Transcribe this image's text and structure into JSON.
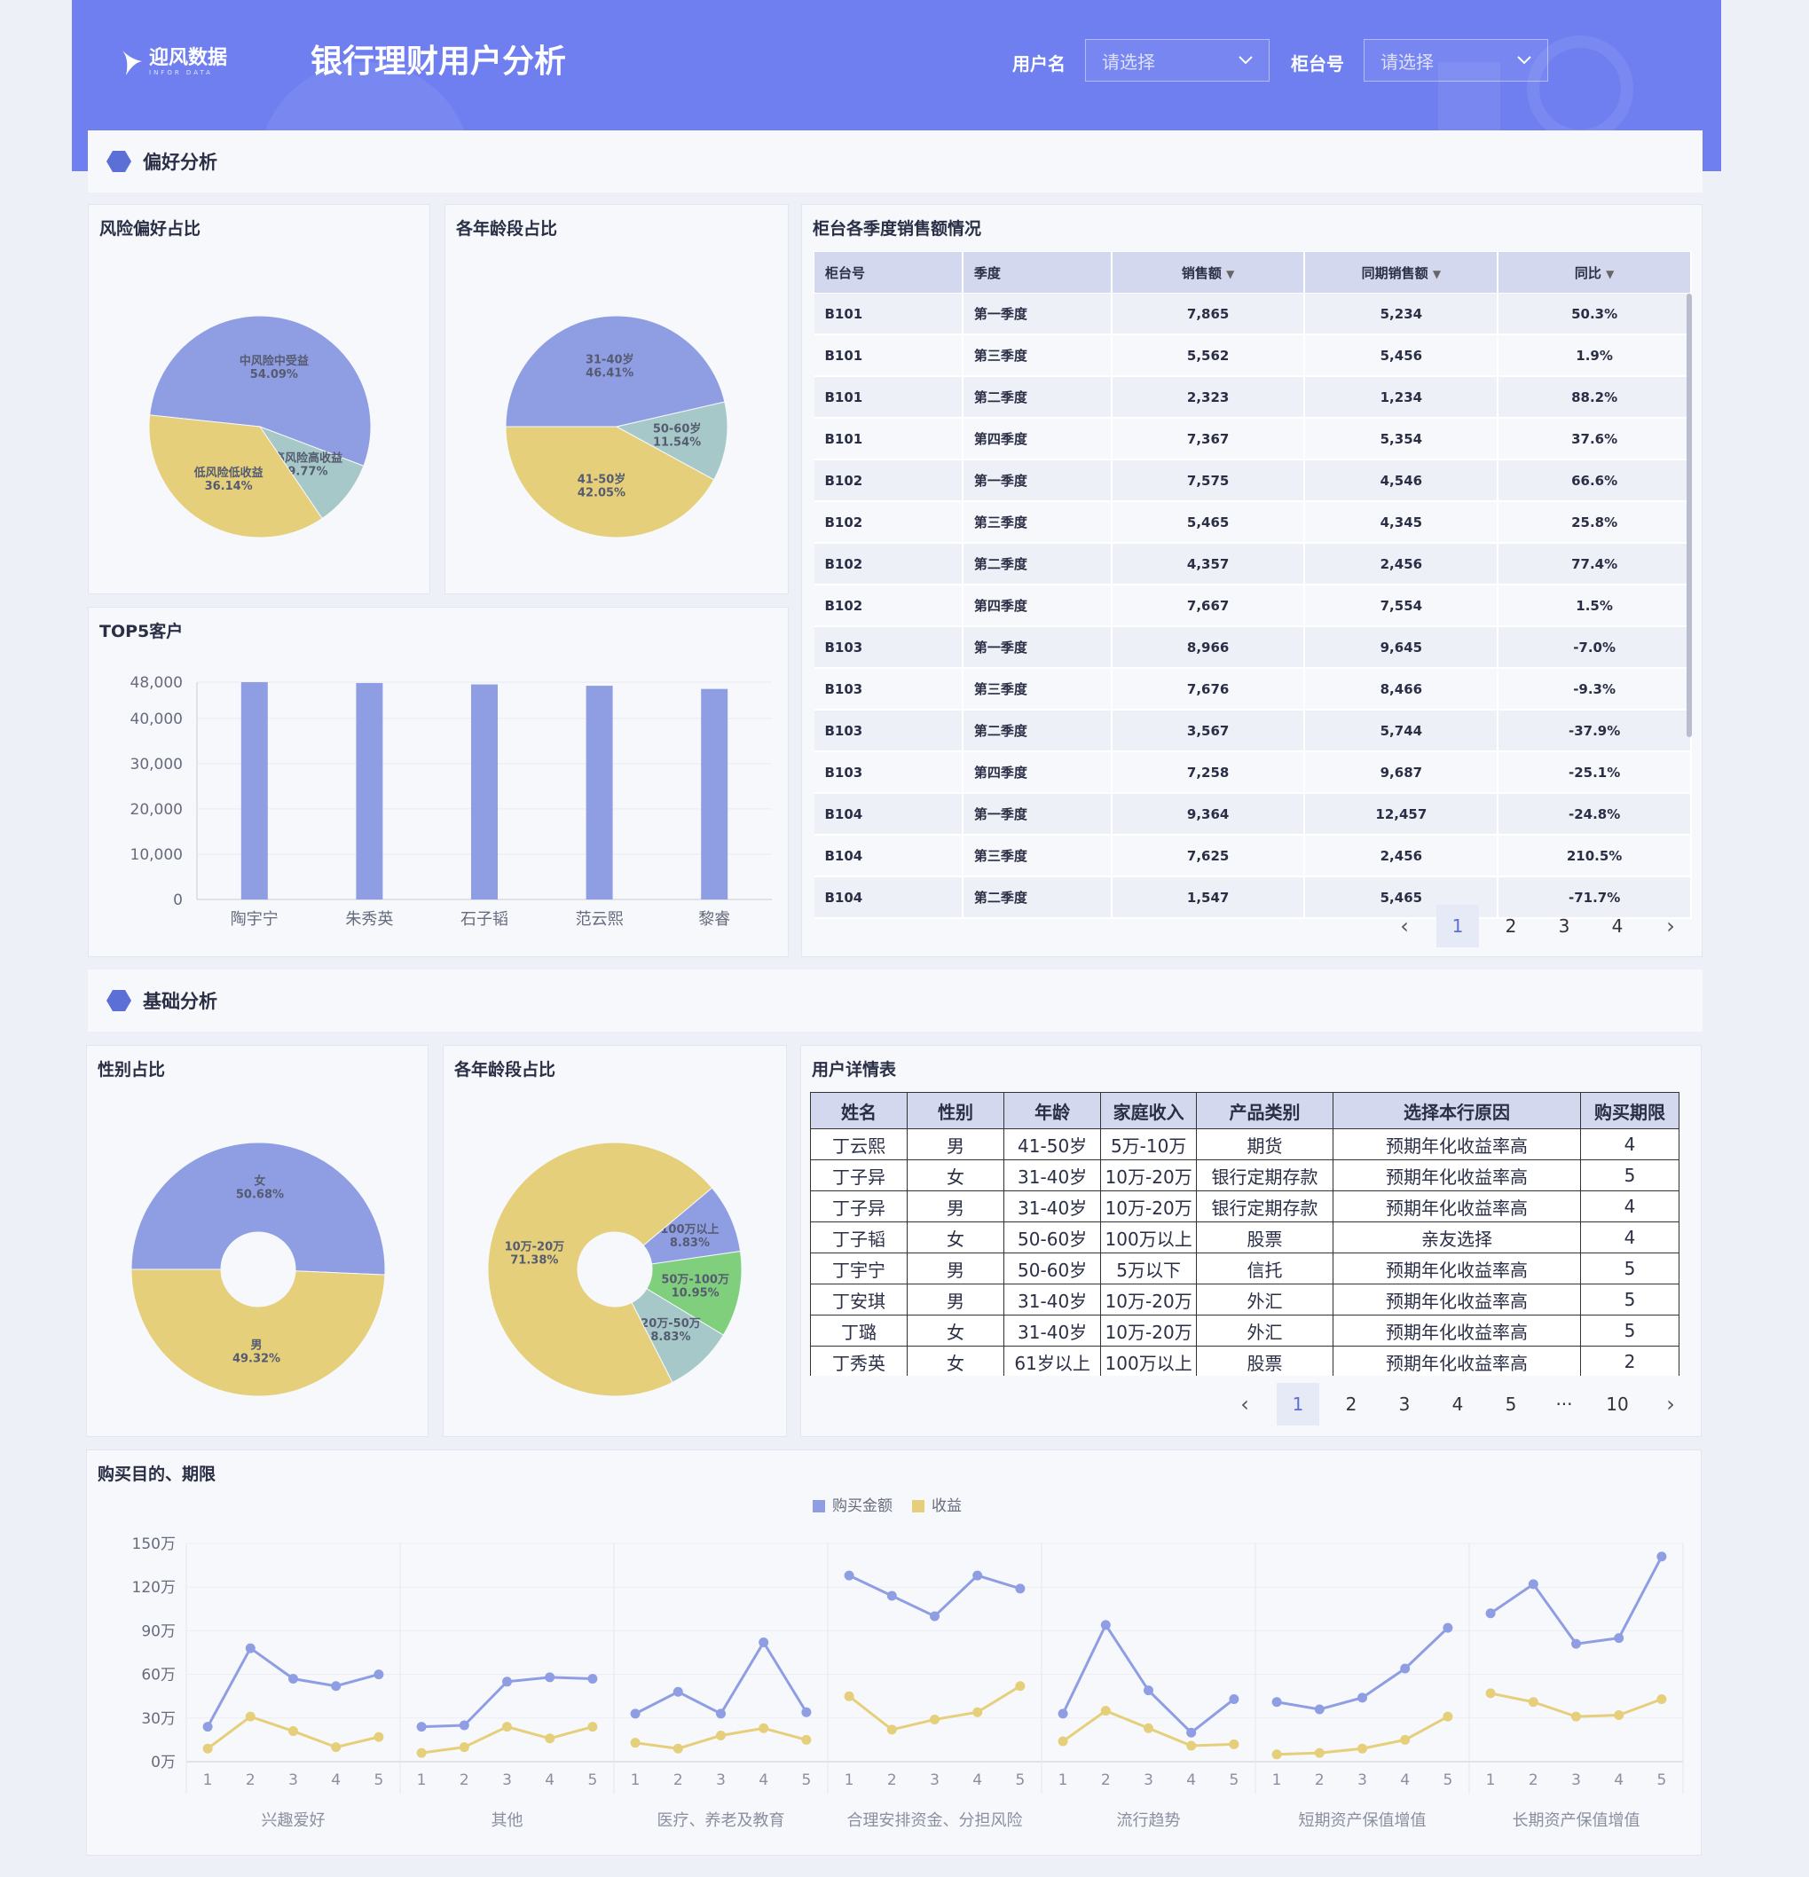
{
  "header": {
    "logo_text": "迎风数据",
    "logo_sub": "INFOR DATA",
    "title": "银行理财用户分析",
    "filters": [
      {
        "label": "用户名",
        "placeholder": "请选择"
      },
      {
        "label": "柜台号",
        "placeholder": "请选择"
      }
    ]
  },
  "sections": {
    "preference": "偏好分析",
    "basic": "基础分析"
  },
  "colors": {
    "primary": "#8f9ee3",
    "yellow": "#e5cf7a",
    "teal": "#a7c8c9",
    "green": "#80cf7c",
    "header": "#6f7ff0"
  },
  "chart_data": [
    {
      "id": "risk-pie",
      "type": "pie",
      "title": "风险偏好占比",
      "slices": [
        {
          "name": "中风险中受益",
          "value": 54.09
        },
        {
          "name": "高风险高收益",
          "value": 9.77
        },
        {
          "name": "低风险低收益",
          "value": 36.14
        }
      ]
    },
    {
      "id": "age-pie",
      "type": "pie",
      "title": "各年龄段占比",
      "slices": [
        {
          "name": "31-40岁",
          "value": 46.41
        },
        {
          "name": "50-60岁",
          "value": 11.54
        },
        {
          "name": "41-50岁",
          "value": 42.05
        }
      ]
    },
    {
      "id": "top5",
      "type": "bar",
      "title": "TOP5客户",
      "categories": [
        "陶宇宁",
        "朱秀英",
        "石子韬",
        "范云熙",
        "黎睿"
      ],
      "values": [
        48000,
        47800,
        47500,
        47200,
        46500
      ],
      "yticks": [
        0,
        10000,
        20000,
        30000,
        40000,
        48000
      ],
      "ytick_labels": [
        "0",
        "10,000",
        "20,000",
        "30,000",
        "40,000",
        "48,000"
      ],
      "ylim": [
        0,
        48000
      ]
    },
    {
      "id": "gender-pie",
      "type": "pie",
      "title": "性别占比",
      "slices": [
        {
          "name": "女",
          "value": 50.68
        },
        {
          "name": "男",
          "value": 49.32
        }
      ]
    },
    {
      "id": "income-pie",
      "type": "pie",
      "title": "各年龄段占比",
      "slices": [
        {
          "name": "100万以上",
          "value": 8.83
        },
        {
          "name": "50万-100万",
          "value": 10.95
        },
        {
          "name": "20万-50万",
          "value": 8.83
        },
        {
          "name": "10万-20万",
          "value": 71.38
        }
      ]
    },
    {
      "id": "purpose",
      "type": "line",
      "title": "购买目的、期限",
      "legend": [
        "购买金额",
        "收益"
      ],
      "yticks": [
        0,
        30,
        60,
        90,
        120,
        150
      ],
      "ytick_labels": [
        "0万",
        "30万",
        "60万",
        "90万",
        "120万",
        "150万"
      ],
      "ylim": [
        0,
        150
      ],
      "x": [
        1,
        2,
        3,
        4,
        5
      ],
      "groups": [
        {
          "name": "兴趣爱好",
          "amount": [
            24,
            78,
            57,
            52,
            60
          ],
          "profit": [
            9,
            31,
            21,
            10,
            17
          ]
        },
        {
          "name": "其他",
          "amount": [
            24,
            25,
            55,
            58,
            57
          ],
          "profit": [
            6,
            10,
            24,
            16,
            24
          ]
        },
        {
          "name": "医疗、养老及教育",
          "amount": [
            33,
            48,
            33,
            82,
            34
          ],
          "profit": [
            13,
            9,
            18,
            23,
            15
          ]
        },
        {
          "name": "合理安排资金、分担风险",
          "amount": [
            128,
            114,
            100,
            128,
            119
          ],
          "profit": [
            45,
            22,
            29,
            34,
            52
          ]
        },
        {
          "name": "流行趋势",
          "amount": [
            33,
            94,
            49,
            20,
            43
          ],
          "profit": [
            14,
            35,
            23,
            11,
            12
          ]
        },
        {
          "name": "短期资产保值增值",
          "amount": [
            41,
            36,
            44,
            64,
            92
          ],
          "profit": [
            5,
            6,
            9,
            15,
            31
          ]
        },
        {
          "name": "长期资产保值增值",
          "amount": [
            102,
            122,
            81,
            85,
            141
          ],
          "profit": [
            47,
            41,
            31,
            32,
            43
          ]
        }
      ]
    }
  ],
  "sales_table": {
    "title": "柜台各季度销售额情况",
    "columns": [
      "柜台号",
      "季度",
      "销售额",
      "同期销售额",
      "同比"
    ],
    "rows": [
      [
        "B101",
        "第一季度",
        "7,865",
        "5,234",
        "50.3%"
      ],
      [
        "B101",
        "第三季度",
        "5,562",
        "5,456",
        "1.9%"
      ],
      [
        "B101",
        "第二季度",
        "2,323",
        "1,234",
        "88.2%"
      ],
      [
        "B101",
        "第四季度",
        "7,367",
        "5,354",
        "37.6%"
      ],
      [
        "B102",
        "第一季度",
        "7,575",
        "4,546",
        "66.6%"
      ],
      [
        "B102",
        "第三季度",
        "5,465",
        "4,345",
        "25.8%"
      ],
      [
        "B102",
        "第二季度",
        "4,357",
        "2,456",
        "77.4%"
      ],
      [
        "B102",
        "第四季度",
        "7,667",
        "7,554",
        "1.5%"
      ],
      [
        "B103",
        "第一季度",
        "8,966",
        "9,645",
        "-7.0%"
      ],
      [
        "B103",
        "第三季度",
        "7,676",
        "8,466",
        "-9.3%"
      ],
      [
        "B103",
        "第二季度",
        "3,567",
        "5,744",
        "-37.9%"
      ],
      [
        "B103",
        "第四季度",
        "7,258",
        "9,687",
        "-25.1%"
      ],
      [
        "B104",
        "第一季度",
        "9,364",
        "12,457",
        "-24.8%"
      ],
      [
        "B104",
        "第三季度",
        "7,625",
        "2,456",
        "210.5%"
      ],
      [
        "B104",
        "第二季度",
        "1,547",
        "5,465",
        "-71.7%"
      ]
    ],
    "pages": [
      "1",
      "2",
      "3",
      "4"
    ],
    "active_page": "1"
  },
  "user_table": {
    "title": "用户详情表",
    "columns": [
      "姓名",
      "性别",
      "年龄",
      "家庭收入",
      "产品类别",
      "选择本行原因",
      "购买期限"
    ],
    "rows": [
      [
        "丁云熙",
        "男",
        "41-50岁",
        "5万-10万",
        "期货",
        "预期年化收益率高",
        "4"
      ],
      [
        "丁子异",
        "女",
        "31-40岁",
        "10万-20万",
        "银行定期存款",
        "预期年化收益率高",
        "5"
      ],
      [
        "丁子异",
        "男",
        "31-40岁",
        "10万-20万",
        "银行定期存款",
        "预期年化收益率高",
        "4"
      ],
      [
        "丁子韬",
        "女",
        "50-60岁",
        "100万以上",
        "股票",
        "亲友选择",
        "4"
      ],
      [
        "丁宇宁",
        "男",
        "50-60岁",
        "5万以下",
        "信托",
        "预期年化收益率高",
        "5"
      ],
      [
        "丁安琪",
        "男",
        "31-40岁",
        "10万-20万",
        "外汇",
        "预期年化收益率高",
        "5"
      ],
      [
        "丁璐",
        "女",
        "31-40岁",
        "10万-20万",
        "外汇",
        "预期年化收益率高",
        "5"
      ],
      [
        "丁秀英",
        "女",
        "61岁以上",
        "100万以上",
        "股票",
        "预期年化收益率高",
        "2"
      ]
    ],
    "pages": [
      "1",
      "2",
      "3",
      "4",
      "5",
      "···",
      "10"
    ],
    "active_page": "1"
  }
}
